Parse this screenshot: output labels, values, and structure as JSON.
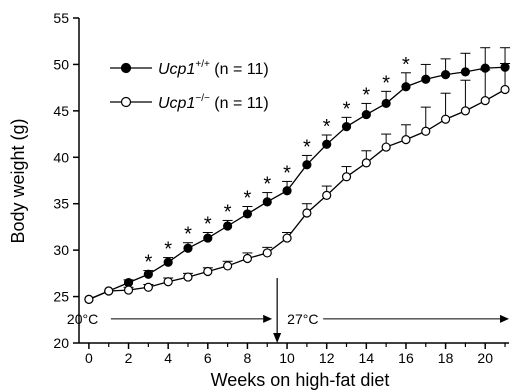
{
  "chart_data": {
    "type": "line",
    "xlabel": "Weeks on high-fat diet",
    "ylabel": "Body weight (g)",
    "xlim": [
      -0.5,
      21.2
    ],
    "ylim": [
      20,
      55
    ],
    "x_ticks": [
      0,
      2,
      4,
      6,
      8,
      10,
      12,
      14,
      16,
      18,
      20
    ],
    "x_minor_ticks": [
      1,
      3,
      5,
      7,
      9,
      11,
      13,
      15,
      17,
      19,
      21
    ],
    "y_ticks": [
      20,
      25,
      30,
      35,
      40,
      45,
      50,
      55
    ],
    "grid": false,
    "legend_position": "top-left",
    "series": [
      {
        "name": "Ucp1+/+ (n = 11)",
        "legend_gene": "Ucp1",
        "legend_sup": "+/+",
        "legend_n": " (n = 11)",
        "marker": "filled-circle",
        "x": [
          0,
          1,
          2,
          3,
          4,
          5,
          6,
          7,
          8,
          9,
          10,
          11,
          12,
          13,
          14,
          15,
          16,
          17,
          18,
          19,
          20,
          21
        ],
        "y": [
          24.7,
          25.6,
          26.5,
          27.4,
          28.7,
          30.2,
          31.3,
          32.6,
          33.9,
          35.2,
          36.4,
          39.2,
          41.4,
          43.3,
          44.6,
          45.8,
          47.6,
          48.4,
          48.9,
          49.2,
          49.6,
          49.7
        ],
        "error": [
          0,
          0,
          0.3,
          0.4,
          0.5,
          0.6,
          0.6,
          0.6,
          0.8,
          1.0,
          1.0,
          1.0,
          1.0,
          1.0,
          1.2,
          1.3,
          1.5,
          1.6,
          1.7,
          2.0,
          2.2,
          2.1
        ]
      },
      {
        "name": "Ucp1-/- (n = 11)",
        "legend_gene": "Ucp1",
        "legend_sup": "−/−",
        "legend_n": " (n = 11)",
        "marker": "open-circle",
        "x": [
          0,
          1,
          2,
          3,
          4,
          5,
          6,
          7,
          8,
          9,
          10,
          11,
          12,
          13,
          14,
          15,
          16,
          17,
          18,
          19,
          20,
          21
        ],
        "y": [
          24.7,
          25.6,
          25.7,
          26.0,
          26.6,
          27.1,
          27.7,
          28.3,
          29.1,
          29.7,
          31.3,
          34.0,
          35.9,
          37.9,
          39.4,
          41.1,
          41.9,
          42.8,
          44.1,
          45.0,
          46.1,
          47.3
        ],
        "error": [
          0,
          0,
          0.3,
          0.3,
          0.4,
          0.4,
          0.4,
          0.5,
          0.6,
          0.6,
          0.6,
          1.0,
          1.0,
          1.1,
          1.3,
          1.4,
          1.6,
          2.6,
          2.8,
          3.3,
          3.3,
          2.8
        ]
      }
    ],
    "significance_marker": "*",
    "significance_weeks": [
      3,
      4,
      5,
      6,
      7,
      8,
      9,
      10,
      11,
      12,
      13,
      14,
      15,
      16
    ],
    "temperature_annotations": [
      {
        "label": "20°C",
        "x_from": 0,
        "x_to": 9.5
      },
      {
        "label": "27°C",
        "x_from": 9.5,
        "x_to": 21
      }
    ],
    "temperature_switch_week": 9.5
  }
}
